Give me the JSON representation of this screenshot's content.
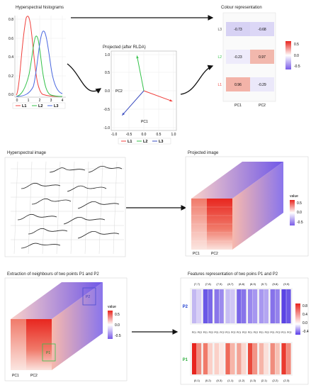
{
  "panels": {
    "histograms": "Hyperspectral histograms",
    "projected": "Projected (after RLDA)",
    "colour": "Colour representation",
    "image": "Hyperspectral image",
    "projected_image": "Projected image",
    "extraction": "Extraction of neighbours of two points P1 and P2",
    "features": "Features representation of two poins P1 and P2"
  },
  "histogram": {
    "yticks": [
      "0.8",
      "0.6",
      "0.4",
      "0.2",
      "0.0"
    ],
    "xticks": [
      "0",
      "1",
      "2",
      "3",
      "4"
    ],
    "legend": [
      "L1",
      "L2",
      "L3"
    ],
    "colors": [
      "#f0403c",
      "#34c24a",
      "#4a68e0"
    ]
  },
  "rlda": {
    "yticks": [
      "1.0",
      "0.5",
      "0.0",
      "-0.5",
      "-1.0"
    ],
    "xticks": [
      "-1.0",
      "-0.5",
      "0.0",
      "0.5",
      "1.0"
    ],
    "ylabel": "PC2",
    "xlabel": "PC1",
    "legend": [
      "L1",
      "L2",
      "L3"
    ],
    "vectors": [
      {
        "name": "L1",
        "x": 0.96,
        "y": -0.29,
        "color": "#f0403c"
      },
      {
        "name": "L2",
        "x": -0.23,
        "y": 0.97,
        "color": "#34c24a"
      },
      {
        "name": "L3",
        "x": -0.73,
        "y": -0.68,
        "color": "#3a4cc0"
      }
    ]
  },
  "colour_table": {
    "rows": [
      "L3",
      "L2",
      "L1"
    ],
    "row_colors": [
      "#444444",
      "#34c24a",
      "#f0403c"
    ],
    "cols": [
      "PC1",
      "PC2"
    ],
    "values": [
      [
        "-0.73",
        "-0.68"
      ],
      [
        "-0.23",
        "0.97"
      ],
      [
        "0.96",
        "-0.29"
      ]
    ],
    "cell_colors": [
      [
        "#d7d2f4",
        "#dcd7f6"
      ],
      [
        "#eeebfb",
        "#f2b8ad"
      ],
      [
        "#f3b3a8",
        "#ebe8fa"
      ]
    ],
    "legend_ticks": [
      "0.5",
      "0.0",
      "-0.5"
    ]
  },
  "projected_image": {
    "legend_title": "value",
    "legend_ticks": [
      "0.5",
      "0.0",
      "-0.5"
    ],
    "labels": [
      "PC1",
      "PC2"
    ]
  },
  "extraction": {
    "legend_title": "value",
    "legend_ticks": [
      "0.5",
      "0.0",
      "-0.5"
    ],
    "labels": [
      "PC1",
      "PC2"
    ],
    "points": [
      "P1",
      "P2"
    ]
  },
  "features": {
    "top_coords": [
      "(7,7)",
      "(7,8)",
      "(7,9)",
      "(8,7)",
      "(8,8)",
      "(8,9)",
      "(9,7)",
      "(9,8)",
      "(9,9)"
    ],
    "bottom_coords": [
      "(0,1)",
      "(0,2)",
      "(0,3)",
      "(1,1)",
      "(1,2)",
      "(1,3)",
      "(2,1)",
      "(2,2)",
      "(2,3)"
    ],
    "pc_labels": [
      "PC1",
      "PC2",
      "PC1",
      "PC2",
      "PC1",
      "PC2",
      "PC1",
      "PC2",
      "PC1",
      "PC2",
      "PC1",
      "PC2",
      "PC1",
      "PC2",
      "PC1",
      "PC2",
      "PC1",
      "PC2"
    ],
    "rows": [
      "P2",
      "P1"
    ],
    "legend_ticks": [
      "0.8",
      "0.4",
      "0.0",
      "-0.4"
    ]
  }
}
